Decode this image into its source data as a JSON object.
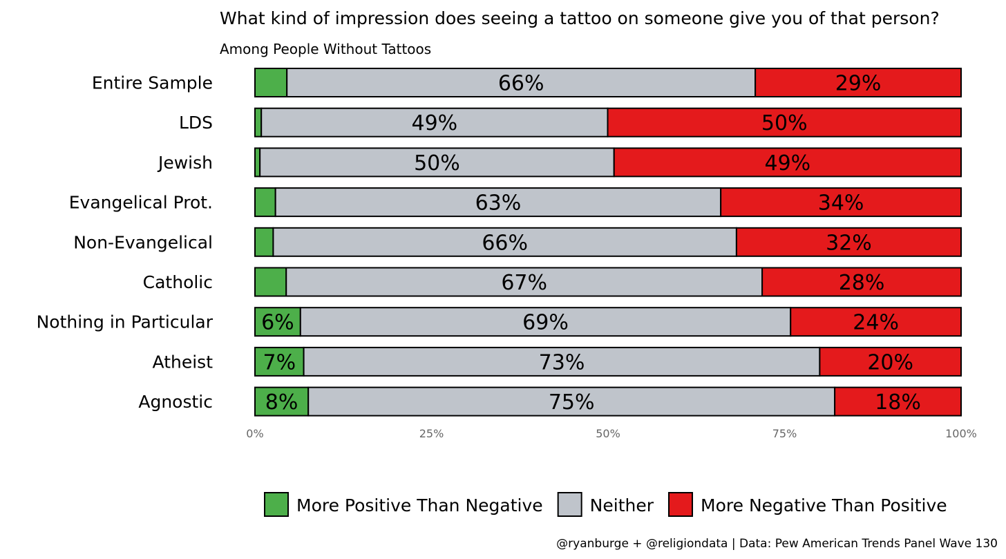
{
  "chart_data": {
    "type": "bar",
    "orientation": "horizontal",
    "stacked": true,
    "title": "What kind of impression does seeing a tattoo on someone give you of that person?",
    "subtitle": "Among People Without Tattoos",
    "categories": [
      "Entire Sample",
      "LDS",
      "Jewish",
      "Evangelical Prot.",
      "Non-Evangelical",
      "Catholic",
      "Nothing in Particular",
      "Atheist",
      "Agnostic"
    ],
    "series": [
      {
        "name": "More Positive Than Negative",
        "color": "#4DAF4A",
        "values": [
          4.5,
          0.9,
          0.7,
          2.9,
          2.6,
          4.4,
          6.4,
          6.9,
          7.6
        ],
        "labels": [
          "",
          "",
          "",
          "",
          "",
          "",
          "6%",
          "7%",
          "8%"
        ]
      },
      {
        "name": "Neither",
        "color": "#BFC4CB",
        "values": [
          66,
          49,
          50,
          63,
          66,
          67,
          69,
          73,
          75
        ],
        "labels": [
          "66%",
          "49%",
          "50%",
          "63%",
          "66%",
          "67%",
          "69%",
          "73%",
          "75%"
        ]
      },
      {
        "name": "More Negative Than Positive",
        "color": "#E41A1C",
        "values": [
          29,
          50,
          49,
          34,
          32,
          28,
          24,
          20,
          18
        ],
        "labels": [
          "29%",
          "50%",
          "49%",
          "34%",
          "32%",
          "28%",
          "24%",
          "20%",
          "18%"
        ]
      }
    ],
    "xlim": [
      0,
      100
    ],
    "xticks": [
      "0%",
      "25%",
      "50%",
      "75%",
      "100%"
    ],
    "xlabel": "",
    "ylabel": "",
    "grid": false,
    "legend_position": "bottom",
    "caption": "@ryanburge + @religiondata | Data: Pew American Trends Panel Wave 130"
  }
}
